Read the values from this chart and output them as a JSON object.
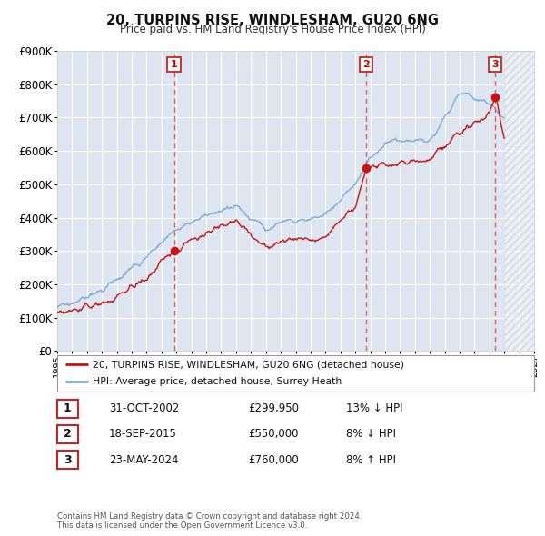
{
  "title": "20, TURPINS RISE, WINDLESHAM, GU20 6NG",
  "subtitle": "Price paid vs. HM Land Registry's House Price Index (HPI)",
  "ylim": [
    0,
    900000
  ],
  "xlim_start": 1995.0,
  "xlim_end": 2027.0,
  "data_end": 2025.0,
  "bg_color": "#dde6f0",
  "grid_color": "#ffffff",
  "sale_dates": [
    2002.833,
    2015.717,
    2024.389
  ],
  "sale_prices": [
    299950,
    550000,
    760000
  ],
  "sale_labels": [
    "1",
    "2",
    "3"
  ],
  "legend_line1": "20, TURPINS RISE, WINDLESHAM, GU20 6NG (detached house)",
  "legend_line2": "HPI: Average price, detached house, Surrey Heath",
  "table_rows": [
    [
      "1",
      "31-OCT-2002",
      "£299,950",
      "13% ↓ HPI"
    ],
    [
      "2",
      "18-SEP-2015",
      "£550,000",
      "8% ↓ HPI"
    ],
    [
      "3",
      "23-MAY-2024",
      "£760,000",
      "8% ↑ HPI"
    ]
  ],
  "footer_line1": "Contains HM Land Registry data © Crown copyright and database right 2024.",
  "footer_line2": "This data is licensed under the Open Government Licence v3.0.",
  "hpi_color": "#7ba7d4",
  "price_color": "#cc1111",
  "vline_color": "#e05050",
  "dot_color": "#cc1111"
}
